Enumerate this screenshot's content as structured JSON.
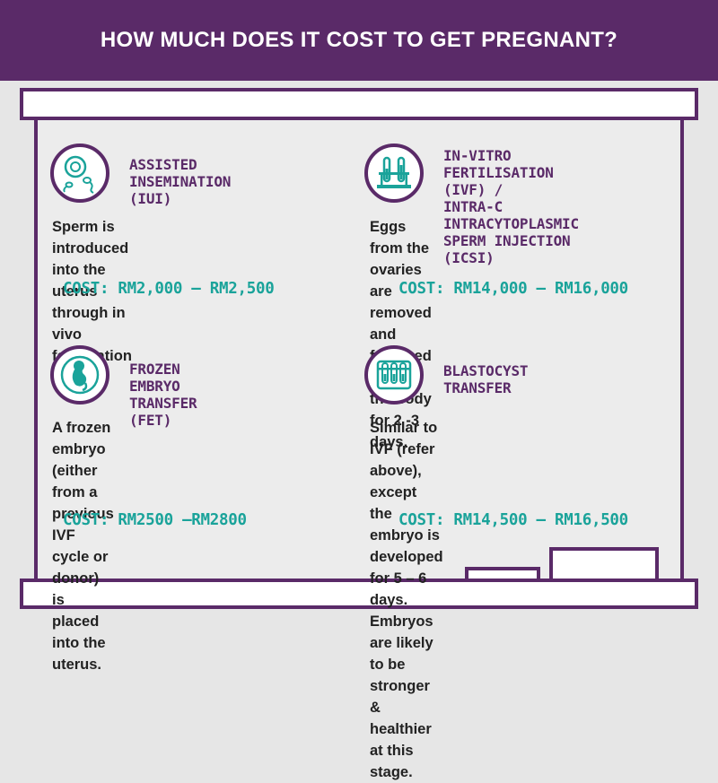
{
  "header": {
    "title": "HOW MUCH DOES IT COST TO GET PREGNANT?"
  },
  "colors": {
    "purple": "#5a2a68",
    "teal": "#1aa39a",
    "background": "#e6e6e6"
  },
  "cards": [
    {
      "icon": "sperm-egg-icon",
      "title_line1": "ASSISTED INSEMINATION",
      "title_line2": "(IUI)",
      "title_line3": "",
      "desc_line1": "Sperm is introduced into the uterus",
      "desc_line2": "through in vivo fertilisation",
      "desc_line3": "",
      "desc_line4": "",
      "cost": "COST: RM2,000 – RM2,500"
    },
    {
      "icon": "test-tube-rack-icon",
      "title_line1": "IN-VITRO FERTILISATION (IVF) /",
      "title_line2": "INTRA-C INTRACYTOPLASMIC",
      "title_line3": "SPERM INJECTION (ICSI)",
      "desc_line1": "Eggs from the ovaries are removed and",
      "desc_line2": "fertilised outside the body for 2 -3 days.",
      "desc_line3": "",
      "desc_line4": "",
      "cost": "COST: RM14,000 – RM16,000"
    },
    {
      "icon": "embryo-icon",
      "title_line1": "FROZEN EMBRYO",
      "title_line2": "TRANSFER (FET)",
      "title_line3": "",
      "desc_line1": "A frozen embryo (either from a",
      "desc_line2": "previous IVF cycle or donor) is placed",
      "desc_line3": "into the uterus.",
      "desc_line4": "",
      "cost": "COST: RM2500 –RM2800"
    },
    {
      "icon": "test-tubes-icon",
      "title_line1": "BLASTOCYST TRANSFER",
      "title_line2": "",
      "title_line3": "",
      "desc_line1": "Similar to IVF (refer above), except the",
      "desc_line2": "embryo is developed for 5 – 6 days.",
      "desc_line3": "Embryos are likely to be stronger &",
      "desc_line4": "healthier at this stage.",
      "cost": "COST: RM14,500 – RM16,500"
    }
  ]
}
